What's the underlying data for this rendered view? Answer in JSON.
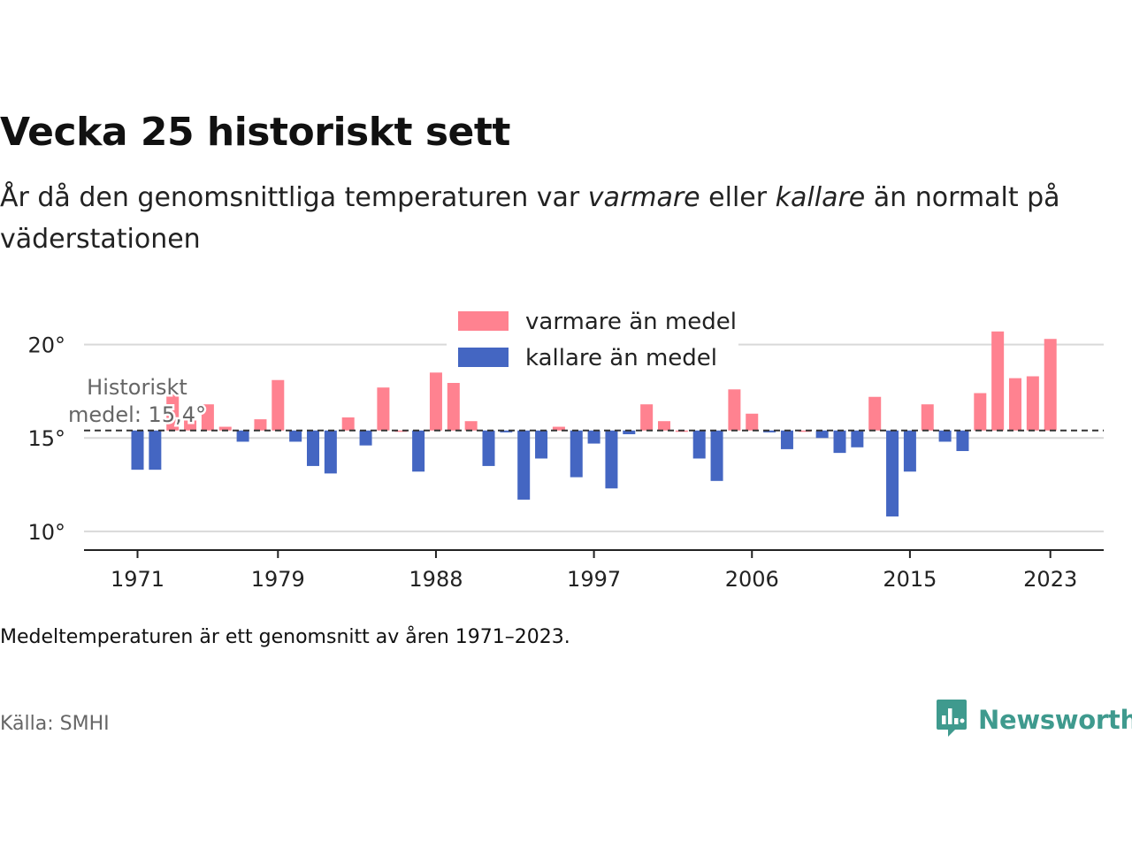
{
  "title": "Vecka 25 historiskt sett",
  "subtitle": {
    "part1": "År då den genomsnittliga temperaturen var ",
    "warm_word": "varmare",
    "part2": " eller ",
    "cold_word": "kallare",
    "part3": " än normalt på väderstationen"
  },
  "footnote": "Medeltemperaturen är ett genomsnitt av åren 1971–2023.",
  "source": "Källa: SMHI",
  "logo": {
    "text": "Newsworthy",
    "icon": "newsworthy-chart-icon"
  },
  "colors": {
    "warm": "#ff8290",
    "cold": "#4466c2",
    "brand": "#3f9a8e",
    "grid": "#d9d9d9",
    "mean_line": "#333333"
  },
  "chart_data": {
    "type": "bar",
    "baseline": 15.4,
    "mean_label_lines": [
      "Historiskt",
      "medel: 15,4°"
    ],
    "legend": [
      {
        "label": "varmare än medel",
        "color": "#ff8290"
      },
      {
        "label": "kallare än medel",
        "color": "#4466c2"
      }
    ],
    "x": [
      1971,
      1972,
      1973,
      1974,
      1975,
      1976,
      1977,
      1978,
      1979,
      1980,
      1981,
      1982,
      1983,
      1984,
      1985,
      1986,
      1987,
      1988,
      1989,
      1990,
      1991,
      1992,
      1993,
      1994,
      1995,
      1996,
      1997,
      1998,
      1999,
      2000,
      2001,
      2002,
      2003,
      2004,
      2005,
      2006,
      2007,
      2008,
      2009,
      2010,
      2011,
      2012,
      2013,
      2014,
      2015,
      2016,
      2017,
      2018,
      2019,
      2020,
      2021,
      2022,
      2023
    ],
    "values": [
      13.3,
      13.3,
      17.5,
      16.0,
      16.8,
      15.6,
      14.8,
      16.0,
      18.1,
      14.8,
      13.5,
      13.1,
      16.1,
      14.6,
      17.7,
      15.4,
      13.2,
      18.5,
      18.0,
      15.9,
      13.5,
      15.3,
      11.7,
      13.9,
      15.6,
      12.9,
      14.7,
      12.3,
      15.2,
      16.8,
      15.9,
      15.4,
      13.9,
      12.7,
      17.6,
      16.3,
      15.3,
      14.4,
      15.4,
      15.0,
      14.2,
      14.5,
      17.2,
      10.8,
      13.2,
      16.8,
      14.8,
      14.3,
      17.4,
      20.7,
      18.2,
      18.3,
      20.3
    ],
    "xticks": [
      "1971",
      "1979",
      "1988",
      "1997",
      "2006",
      "2015",
      "2023"
    ],
    "yticks": [
      10,
      15,
      20
    ],
    "ytick_labels": [
      "10°",
      "15°",
      "20°"
    ],
    "ylim": [
      9.0,
      21.4
    ],
    "grid": true
  }
}
